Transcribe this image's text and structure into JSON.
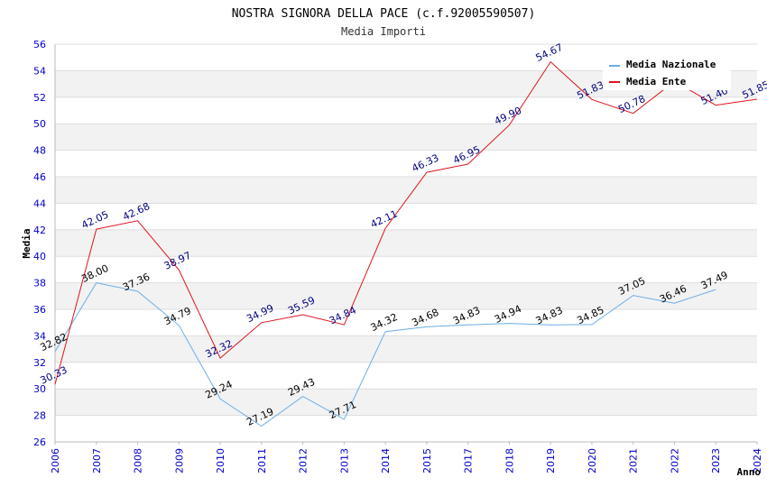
{
  "chart_data": {
    "type": "line",
    "title": "NOSTRA SIGNORA DELLA PACE (c.f.92005590507)",
    "subtitle": "Media Importi",
    "xlabel": "Anno",
    "ylabel": "Media",
    "ylim": [
      26,
      56
    ],
    "yticks": [
      26,
      28,
      30,
      32,
      34,
      36,
      38,
      40,
      42,
      44,
      46,
      48,
      50,
      52,
      54,
      56
    ],
    "categories": [
      "2006",
      "2007",
      "2008",
      "2009",
      "2010",
      "2011",
      "2012",
      "2013",
      "2014",
      "2015",
      "2017",
      "2018",
      "2019",
      "2020",
      "2021",
      "2022",
      "2023",
      "2024"
    ],
    "legend_position": "top-right",
    "grid": true,
    "series": [
      {
        "name": "Media Nazionale",
        "color": "#6aaee8",
        "values": [
          32.82,
          38.0,
          37.36,
          34.79,
          29.24,
          27.19,
          29.43,
          27.71,
          34.32,
          34.68,
          34.83,
          34.94,
          34.83,
          34.85,
          37.05,
          36.46,
          37.49,
          null
        ]
      },
      {
        "name": "Media Ente",
        "color": "#e0141e",
        "values": [
          30.33,
          42.05,
          42.68,
          38.97,
          32.32,
          34.99,
          35.59,
          34.84,
          42.11,
          46.33,
          46.95,
          49.9,
          54.67,
          51.83,
          50.78,
          53.2,
          51.4,
          51.85
        ]
      }
    ]
  }
}
